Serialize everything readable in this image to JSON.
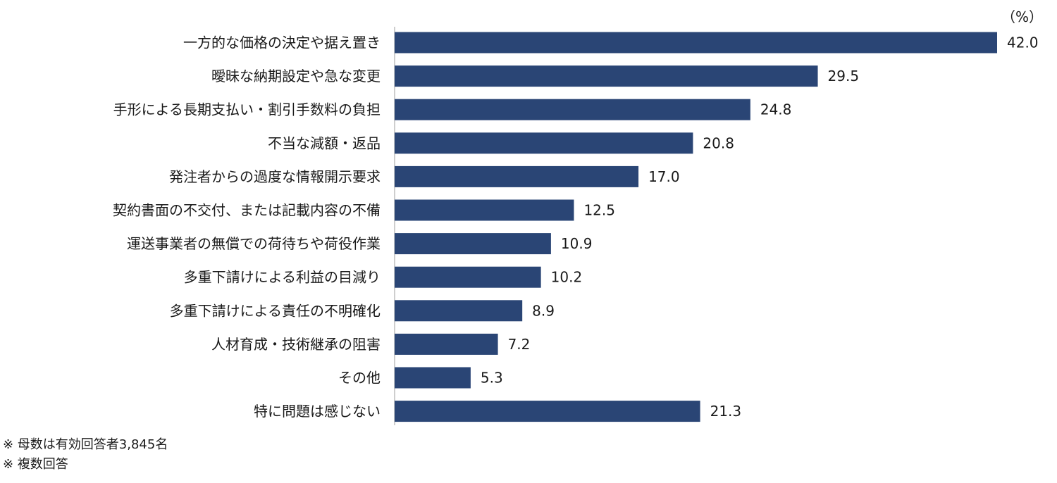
{
  "chart_data": {
    "type": "bar",
    "orientation": "horizontal",
    "unit_label": "（%）",
    "bar_color": "#2a4575",
    "xlim": [
      0,
      42.0
    ],
    "categories": [
      "一方的な価格の決定や据え置き",
      "曖昧な納期設定や急な変更",
      "手形による長期支払い・割引手数料の負担",
      "不当な減額・返品",
      "発注者からの過度な情報開示要求",
      "契約書面の不交付、または記載内容の不備",
      "運送事業者の無償での荷待ちや荷役作業",
      "多重下請けによる利益の目減り",
      "多重下請けによる責任の不明確化",
      "人材育成・技術継承の阻害",
      "その他",
      "特に問題は感じない"
    ],
    "values": [
      42.0,
      29.5,
      24.8,
      20.8,
      17.0,
      12.5,
      10.9,
      10.2,
      8.9,
      7.2,
      5.3,
      21.3
    ],
    "value_labels": [
      "42.0",
      "29.5",
      "24.8",
      "20.8",
      "17.0",
      "12.5",
      "10.9",
      "10.2",
      "8.9",
      "7.2",
      "5.3",
      "21.3"
    ]
  },
  "notes": [
    "※ 母数は有効回答者3,845名",
    "※ 複数回答"
  ]
}
